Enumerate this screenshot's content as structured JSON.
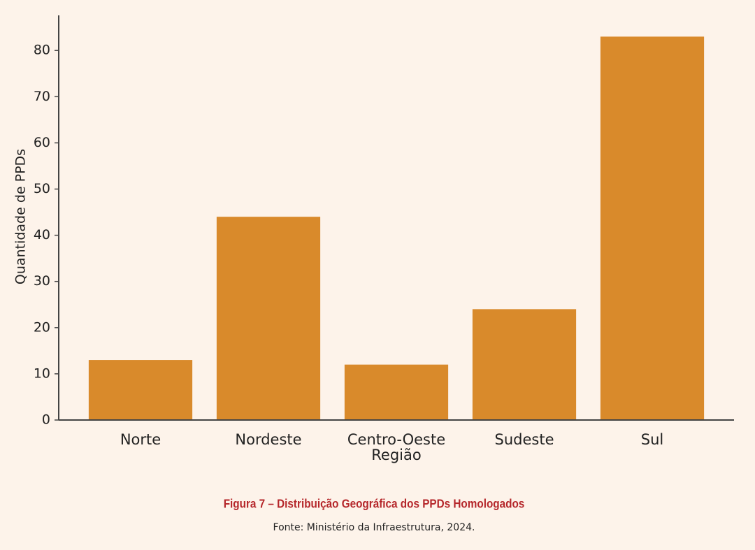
{
  "chart_data": {
    "type": "bar",
    "y_label": "Quantidade de PPDs",
    "x_label": "Região",
    "categories": [
      "Norte",
      "Nordeste",
      "Centro-Oeste",
      "Sudeste",
      "Sul"
    ],
    "values": [
      13,
      44,
      12,
      24,
      83
    ],
    "color": "#d98a2b",
    "ylim": [
      0,
      87.6
    ],
    "yticks": [
      0,
      10,
      20,
      30,
      40,
      50,
      60,
      70,
      80
    ],
    "grid": false,
    "caption": "Figura 7 – Distribuição Geográfica dos PPDs Homologados",
    "source": "Fonte: Ministério da Infraestrutura, 2024."
  }
}
